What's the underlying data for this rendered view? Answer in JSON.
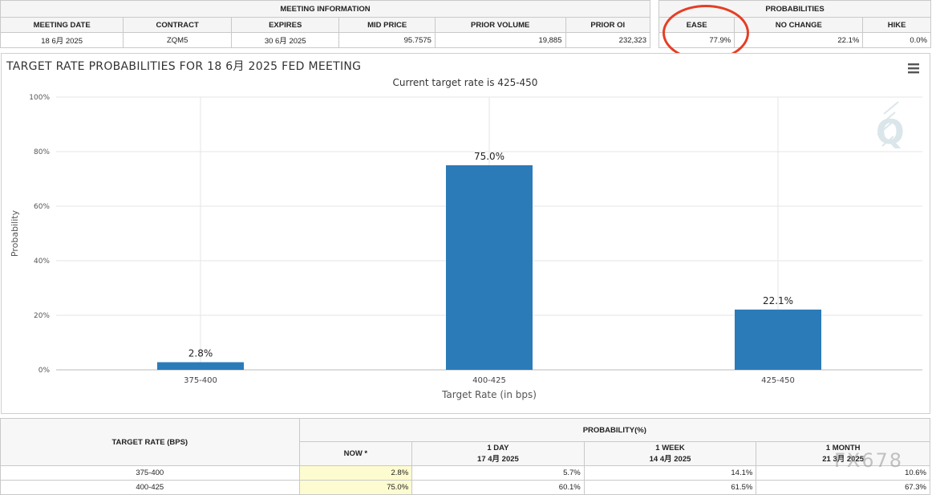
{
  "meeting_info": {
    "group_title": "MEETING INFORMATION",
    "headers": [
      "MEETING DATE",
      "CONTRACT",
      "EXPIRES",
      "MID PRICE",
      "PRIOR VOLUME",
      "PRIOR OI"
    ],
    "values": [
      "18 6月 2025",
      "ZQM5",
      "30 6月 2025",
      "95.7575",
      "19,885",
      "232,323"
    ]
  },
  "probabilities": {
    "group_title": "PROBABILITIES",
    "headers": [
      "EASE",
      "NO CHANGE",
      "HIKE"
    ],
    "values": [
      "77.9%",
      "22.1%",
      "0.0%"
    ]
  },
  "menu_icon": "hamburger-menu-icon",
  "chart_data": {
    "type": "bar",
    "title": "TARGET RATE PROBABILITIES FOR 18 6月 2025 FED MEETING",
    "subtitle": "Current target rate is 425-450",
    "xlabel": "Target Rate (in bps)",
    "ylabel": "Probability",
    "categories": [
      "375-400",
      "400-425",
      "425-450"
    ],
    "values": [
      2.8,
      75.0,
      22.1
    ],
    "data_labels": [
      "2.8%",
      "75.0%",
      "22.1%"
    ],
    "ylim": [
      0,
      100
    ],
    "yticks": [
      "0%",
      "20%",
      "40%",
      "60%",
      "80%",
      "100%"
    ],
    "grid": true,
    "bar_color": "#2b7bb9"
  },
  "bottom_table": {
    "col1_header": "TARGET RATE (BPS)",
    "group_header": "PROBABILITY(%)",
    "sub_headers": [
      {
        "line1": "NOW *",
        "line2": ""
      },
      {
        "line1": "1 DAY",
        "line2": "17 4月 2025"
      },
      {
        "line1": "1 WEEK",
        "line2": "14 4月 2025"
      },
      {
        "line1": "1 MONTH",
        "line2": "21 3月 2025"
      }
    ],
    "rows": [
      {
        "rate": "375-400",
        "now": "2.8%",
        "day": "5.7%",
        "week": "14.1%",
        "month": "10.6%"
      },
      {
        "rate": "400-425",
        "now": "75.0%",
        "day": "60.1%",
        "week": "61.5%",
        "month": "67.3%"
      }
    ]
  },
  "watermark": "FX678",
  "highlight_color": "#e53e25"
}
